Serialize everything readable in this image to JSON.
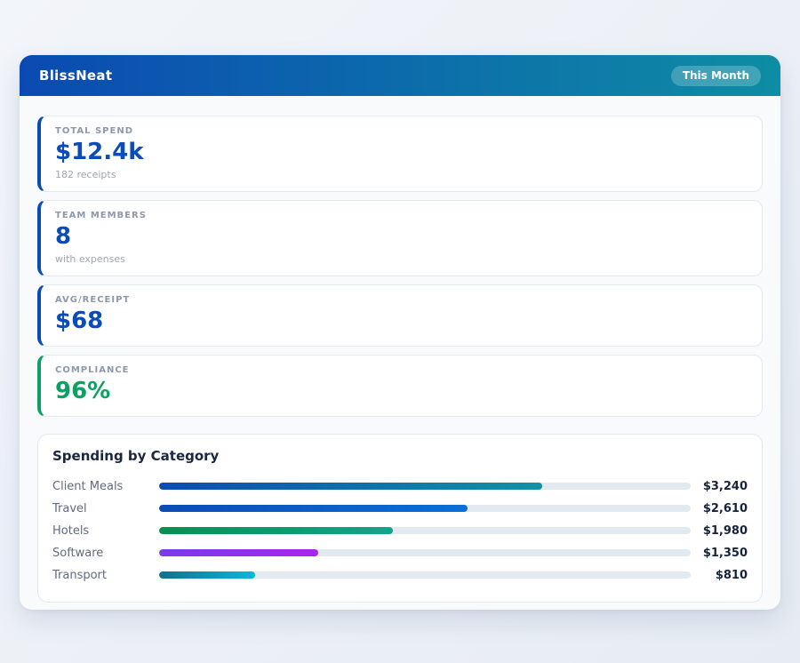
{
  "header": {
    "title": "BlissNeat",
    "badge": "This Month",
    "gradient_from": "#0b4ab2",
    "gradient_to": "#0e8da4"
  },
  "stats": [
    {
      "label": "TOTAL SPEND",
      "value": "$12.4k",
      "sub": "182 receipts",
      "accent": "#0b4cb4",
      "value_color": "#0b4cb8"
    },
    {
      "label": "TEAM MEMBERS",
      "value": "8",
      "sub": "with expenses",
      "accent": "#0b4cb4",
      "value_color": "#0b4cb8"
    },
    {
      "label": "AVG/RECEIPT",
      "value": "$68",
      "sub": "",
      "accent": "#0b4cb4",
      "value_color": "#0b4cb8"
    },
    {
      "label": "COMPLIANCE",
      "value": "96%",
      "sub": "",
      "accent": "#0e9f62",
      "value_color": "#0e9f62"
    }
  ],
  "chart": {
    "title": "Spending by Category",
    "track_color": "#e3e9f0",
    "rows": [
      {
        "label": "Client Meals",
        "value_label": "$3,240",
        "percent": 72,
        "gradient_from": "#0b4cb4",
        "gradient_to": "#0f93a6"
      },
      {
        "label": "Travel",
        "value_label": "$2,610",
        "percent": 58,
        "gradient_from": "#0b4cb4",
        "gradient_to": "#0a70d8"
      },
      {
        "label": "Hotels",
        "value_label": "$1,980",
        "percent": 44,
        "gradient_from": "#0a8f50",
        "gradient_to": "#14a38c"
      },
      {
        "label": "Software",
        "value_label": "$1,350",
        "percent": 30,
        "gradient_from": "#7a3bec",
        "gradient_to": "#a726ee"
      },
      {
        "label": "Transport",
        "value_label": "$810",
        "percent": 18,
        "gradient_from": "#11708f",
        "gradient_to": "#0cb8d8"
      }
    ]
  },
  "chart_data": {
    "type": "bar",
    "orientation": "horizontal",
    "title": "Spending by Category",
    "categories": [
      "Client Meals",
      "Travel",
      "Hotels",
      "Software",
      "Transport"
    ],
    "values": [
      3240,
      2610,
      1980,
      1350,
      810
    ],
    "value_labels": [
      "$3,240",
      "$2,610",
      "$1,980",
      "$1,350",
      "$810"
    ],
    "xlim": [
      0,
      4500
    ],
    "grid": false,
    "legend": false
  }
}
